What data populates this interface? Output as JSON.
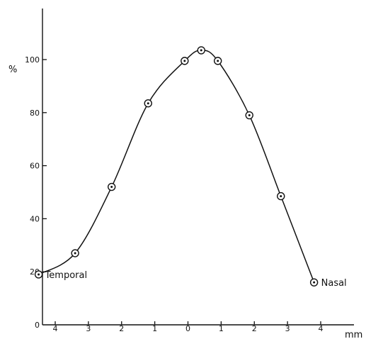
{
  "chart_data": {
    "type": "line",
    "title": "",
    "xlabel": "mm",
    "ylabel": "%",
    "xlim": [
      -4.6,
      4.9
    ],
    "ylim": [
      0,
      120
    ],
    "x_ticks": [
      {
        "value": -4,
        "label": "4"
      },
      {
        "value": -3,
        "label": "3"
      },
      {
        "value": -2,
        "label": "2"
      },
      {
        "value": -1,
        "label": "1"
      },
      {
        "value": 0,
        "label": "0"
      },
      {
        "value": 1,
        "label": "1"
      },
      {
        "value": 2,
        "label": "2"
      },
      {
        "value": 3,
        "label": "3"
      },
      {
        "value": 4,
        "label": "4"
      }
    ],
    "y_ticks": [
      {
        "value": 0,
        "label": "0"
      },
      {
        "value": 20,
        "label": "20"
      },
      {
        "value": 40,
        "label": "40"
      },
      {
        "value": 60,
        "label": "60"
      },
      {
        "value": 80,
        "label": "80"
      },
      {
        "value": 100,
        "label": "100"
      }
    ],
    "grid": false,
    "series": [
      {
        "x": [
          -4.5,
          -3.4,
          -2.3,
          -1.2,
          -0.1,
          0.4,
          0.9,
          1.85,
          2.8,
          3.8
        ],
        "y": [
          19,
          27,
          52,
          83.5,
          99.5,
          103.5,
          99.5,
          79,
          48.5,
          16
        ]
      }
    ],
    "annotations": [
      {
        "text": "Temporal",
        "x": -4.5,
        "y": 19
      },
      {
        "text": "Nasal",
        "x": 3.8,
        "y": 16
      }
    ]
  }
}
